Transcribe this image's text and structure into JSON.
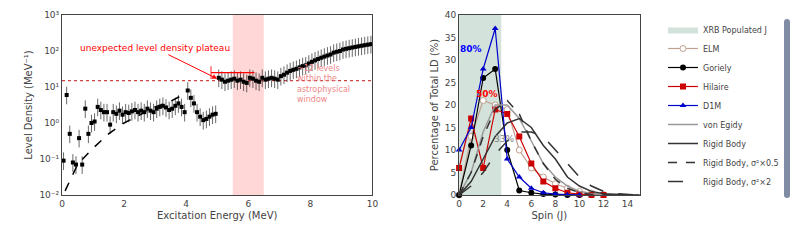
{
  "chart_data": [
    {
      "type": "scatter",
      "log": "y",
      "grid": false,
      "xlabel": "Excitation Energy (MeV)",
      "ylabel": "Level Density (MeV⁻¹)",
      "xlim": [
        0,
        10
      ],
      "ylim": [
        0.01,
        1000
      ],
      "xticks": [
        0,
        2,
        4,
        6,
        8,
        10
      ],
      "yticks": [
        {
          "value": 0.01,
          "label": "10⁻²"
        },
        {
          "value": 0.1,
          "label": "10⁻¹"
        },
        {
          "value": 1,
          "label": "10⁰"
        },
        {
          "value": 10,
          "label": "10¹"
        },
        {
          "value": 100,
          "label": "10²"
        },
        {
          "value": 1000,
          "label": "10³"
        }
      ],
      "shaded": [
        {
          "x": [
            5.5,
            6.5
          ],
          "color": "#ffb0b0"
        }
      ],
      "hlines": [
        {
          "y": 15,
          "color": "#cc4444",
          "line_style": "dot"
        }
      ],
      "series": [
        {
          "type": "scatter",
          "marker": "square",
          "color": "#000000",
          "x": [
            0.05,
            0.15,
            0.25,
            0.35,
            0.45,
            0.55,
            0.65,
            0.75,
            0.85,
            0.95,
            1.05,
            1.15,
            1.25,
            1.35,
            1.45,
            1.55,
            1.65,
            1.75,
            1.85,
            1.95,
            2.05,
            2.15,
            2.25,
            2.35,
            2.45,
            2.55,
            2.65,
            2.75,
            2.85,
            2.95,
            3.05,
            3.15,
            3.25,
            3.35,
            3.45,
            3.55,
            3.65,
            3.75,
            3.85,
            3.95,
            4.05,
            4.15,
            4.25,
            4.35,
            4.45,
            4.55,
            4.65,
            4.75,
            4.85,
            4.95,
            5.05,
            5.15,
            5.25,
            5.35,
            5.45,
            5.55,
            5.65,
            5.75,
            5.85,
            5.95,
            6.05,
            6.15,
            6.25,
            6.35,
            6.45,
            6.55,
            6.65,
            6.75,
            6.85,
            6.95,
            7.05,
            7.15,
            7.25,
            7.35,
            7.45,
            7.55,
            7.65,
            7.75,
            7.85,
            7.95,
            8.05,
            8.15,
            8.25,
            8.35,
            8.45,
            8.55,
            8.65,
            8.75,
            8.85,
            8.95,
            9.05,
            9.15,
            9.25,
            9.35,
            9.45,
            9.55,
            9.65,
            9.75,
            9.85,
            9.95
          ],
          "values": [
            0.09,
            6.0,
            0.5,
            0.08,
            0.07,
            0.38,
            0.07,
            2.5,
            0.5,
            1.0,
            1.1,
            2.8,
            2.3,
            2.0,
            2.0,
            0.9,
            2.0,
            1.8,
            2.2,
            1.7,
            2.0,
            1.9,
            2.1,
            2.3,
            2.0,
            2.2,
            2.0,
            2.5,
            2.2,
            2.0,
            2.5,
            2.8,
            3.0,
            2.7,
            2.3,
            2.5,
            3.0,
            3.5,
            2.8,
            2.0,
            8.0,
            5.0,
            3.5,
            2.0,
            1.5,
            1.2,
            1.3,
            1.5,
            1.7,
            1.8,
            18.0,
            16.0,
            14.0,
            15.0,
            16.0,
            17.0,
            15.0,
            16.0,
            14.0,
            13.0,
            18.0,
            17.0,
            15.0,
            14.0,
            18.0,
            16.0,
            17.0,
            18.0,
            17.0,
            16.0,
            20.0,
            22.0,
            25.0,
            28.0,
            30.0,
            32.0,
            35.0,
            38.0,
            40.0,
            45.0,
            50.0,
            55.0,
            60.0,
            65.0,
            70.0,
            75.0,
            80.0,
            90.0,
            95.0,
            100.0,
            110.0,
            115.0,
            120.0,
            125.0,
            130.0,
            135.0,
            140.0,
            145.0,
            150.0,
            155.0
          ],
          "error_low": [
            0.0405,
            2.7,
            0.225,
            0.036,
            0.0315,
            0.171,
            0.0315,
            1.125,
            0.225,
            0.45,
            0.495,
            1.26,
            1.035,
            0.9,
            0.9,
            0.405,
            0.9,
            0.81,
            0.99,
            0.765,
            0.9,
            0.855,
            0.945,
            1.035,
            0.9,
            0.99,
            0.9,
            1.125,
            0.99,
            0.9,
            1.125,
            1.26,
            1.35,
            1.215,
            1.035,
            1.125,
            1.35,
            1.575,
            1.26,
            0.9,
            3.6,
            2.25,
            1.575,
            0.9,
            0.675,
            0.54,
            0.585,
            0.675,
            0.765,
            0.81,
            8.1,
            7.2,
            6.3,
            6.75,
            7.2,
            7.65,
            6.75,
            7.2,
            6.3,
            5.85,
            8.1,
            7.65,
            6.75,
            6.3,
            8.1,
            7.2,
            7.65,
            8.1,
            7.65,
            7.2,
            9,
            9.9,
            11.25,
            12.6,
            13.5,
            14.4,
            15.75,
            17.1,
            18,
            20.25,
            22.5,
            24.75,
            27,
            29.25,
            31.5,
            33.75,
            36,
            40.5,
            42.75,
            45,
            49.5,
            51.75,
            54,
            56.25,
            58.5,
            60.75,
            63,
            65.25,
            67.5,
            69.75
          ],
          "error_high": [
            0.063,
            4.2,
            0.35,
            0.056,
            0.049,
            0.266,
            0.049,
            1.75,
            0.35,
            0.7,
            0.77,
            1.96,
            1.61,
            1.4,
            1.4,
            0.63,
            1.4,
            1.26,
            1.54,
            1.19,
            1.4,
            1.33,
            1.47,
            1.61,
            1.4,
            1.54,
            1.4,
            1.75,
            1.54,
            1.4,
            1.75,
            1.96,
            2.1,
            1.89,
            1.61,
            1.75,
            2.1,
            2.45,
            1.96,
            1.4,
            5.6,
            3.5,
            2.45,
            1.4,
            1.05,
            0.84,
            0.91,
            1.05,
            1.19,
            1.26,
            12.6,
            11.2,
            9.8,
            10.5,
            11.2,
            11.9,
            10.5,
            11.2,
            9.8,
            9.1,
            12.6,
            11.9,
            10.5,
            9.8,
            12.6,
            11.2,
            11.9,
            12.6,
            11.9,
            11.2,
            14,
            15.4,
            17.5,
            19.6,
            21,
            22.4,
            24.5,
            26.6,
            28,
            31.5,
            35,
            38.5,
            42,
            45.5,
            49,
            52.5,
            56,
            63,
            66.5,
            70,
            77,
            80.5,
            84,
            87.5,
            91,
            94.5,
            98,
            101.5,
            105,
            108.5
          ]
        },
        {
          "type": "line",
          "line_style": "dash",
          "color": "#000000",
          "x": [
            0.1,
            0.5,
            1.0,
            1.5,
            2.0,
            2.5,
            3.0,
            3.5,
            3.8,
            3.9,
            3.95
          ],
          "values": [
            0.013,
            0.07,
            0.2,
            0.5,
            1.0,
            1.7,
            2.8,
            4.0,
            5.5,
            6.5,
            7.5
          ]
        }
      ],
      "brackets": [
        {
          "x": [
            4.8,
            6.2
          ],
          "y": 25,
          "color": "red"
        }
      ],
      "annotations": [
        {
          "text": "unexpected level density plateau",
          "x": 3.0,
          "y": 120,
          "arrow_x": 5.0,
          "arrow_y": 17,
          "color": "red"
        },
        {
          "text": "~12 levels\nwithin the\nastrophysical\nwindow",
          "x": 7.5,
          "y": 12,
          "color": "#ee8888"
        }
      ]
    },
    {
      "type": "line",
      "grid": false,
      "legend": "upper right",
      "xlabel": "Spin (J)",
      "ylabel": "Percentage of Total LD (%)",
      "xlim": [
        0,
        15
      ],
      "ylim": [
        0,
        40
      ],
      "xticks": [
        0,
        2,
        4,
        6,
        8,
        10,
        12,
        14
      ],
      "yticks": [
        0,
        5,
        10,
        15,
        20,
        25,
        30,
        35,
        40
      ],
      "shaded": [
        {
          "name": "XRB Populated J",
          "x": [
            0,
            3.5
          ],
          "color": "#a8c8b8"
        }
      ],
      "series": [
        {
          "name": "ELM",
          "type": "line",
          "marker": "circle-open",
          "line_style": "solid",
          "color": "#c0a090",
          "x": [
            0,
            1,
            2,
            3,
            4,
            5,
            6,
            7,
            8,
            9,
            10,
            11,
            12
          ],
          "values": [
            0,
            13,
            21,
            20,
            19,
            10,
            6,
            4,
            2.5,
            1.5,
            0.8,
            0.4,
            0.1
          ]
        },
        {
          "name": "Goriely",
          "type": "line",
          "marker": "circle",
          "line_style": "solid",
          "color": "#000000",
          "x": [
            0,
            1,
            2,
            3,
            4,
            5,
            6,
            7,
            8,
            9,
            10,
            11
          ],
          "values": [
            0,
            11,
            26,
            28,
            10,
            1,
            0.5,
            0.2,
            0.1,
            0.0,
            0.0,
            0.0
          ]
        },
        {
          "name": "Hilaire",
          "type": "line",
          "marker": "square",
          "line_style": "solid",
          "color": "#cc0000",
          "x": [
            0,
            1,
            2,
            3,
            4,
            5,
            6,
            7,
            8,
            9,
            10,
            11,
            12
          ],
          "values": [
            6,
            17,
            6,
            19,
            18,
            13,
            7,
            3,
            1.5,
            0.5,
            0.2,
            0.05,
            0.0
          ]
        },
        {
          "name": "D1M",
          "type": "line",
          "marker": "triangle-up",
          "line_style": "solid",
          "color": "#0000cc",
          "x": [
            0,
            1,
            2,
            3,
            4,
            5,
            6,
            7,
            8,
            9,
            10
          ],
          "values": [
            10,
            15,
            28,
            37,
            8,
            4,
            1.5,
            0.5,
            0.2,
            0.05,
            0.0
          ]
        },
        {
          "name": "von Egidy",
          "type": "line",
          "line_style": "solid",
          "color": "#999999",
          "x": [
            0,
            1,
            2,
            3,
            4,
            5,
            6,
            7,
            8,
            9,
            10,
            11,
            12,
            13,
            14,
            15
          ],
          "values": [
            0,
            5,
            14,
            20,
            20,
            17,
            12,
            7,
            4,
            2,
            0.8,
            0.3,
            0.1,
            0.03,
            0.01,
            0.0
          ]
        },
        {
          "name": "Rigid Body",
          "type": "line",
          "line_style": "solid",
          "color": "#333333",
          "x": [
            0,
            1,
            2,
            3,
            4,
            5,
            6,
            7,
            8,
            9,
            10,
            11,
            12,
            13,
            14,
            15
          ],
          "values": [
            0,
            3,
            8,
            13,
            16,
            17,
            15,
            11,
            8,
            4,
            2,
            0.8,
            0.3,
            0.1,
            0.03,
            0.0
          ]
        },
        {
          "name": "Rigid Body, σ²×0.5",
          "type": "line",
          "line_style": "dash",
          "color": "#333333",
          "x": [
            0,
            1,
            2,
            3,
            4,
            5,
            6,
            7,
            8,
            9,
            10,
            11,
            12,
            13,
            14,
            15
          ],
          "values": [
            0,
            5,
            13,
            19,
            21,
            18,
            12,
            7,
            3.5,
            1.5,
            0.5,
            0.15,
            0.04,
            0.01,
            0.0,
            0.0
          ]
        },
        {
          "name": "Rigid Body, σ²×2",
          "type": "line",
          "line_style": "longdash",
          "color": "#333333",
          "x": [
            0,
            1,
            2,
            3,
            4,
            5,
            6,
            7,
            8,
            9,
            10,
            11,
            12,
            13,
            14,
            15
          ],
          "values": [
            0,
            2,
            5,
            9,
            12,
            14,
            14,
            13,
            10,
            7,
            4,
            2,
            0.8,
            0.3,
            0.1,
            0.0
          ]
        }
      ],
      "annotations": [
        {
          "text": "80%",
          "x": 1.0,
          "y": 31,
          "color": "blue",
          "bold": true
        },
        {
          "text": "50%",
          "x": 2.3,
          "y": 21,
          "color": "red",
          "bold": true
        },
        {
          "text": "33%",
          "x": 3.7,
          "y": 11,
          "color": "gray"
        }
      ]
    }
  ]
}
